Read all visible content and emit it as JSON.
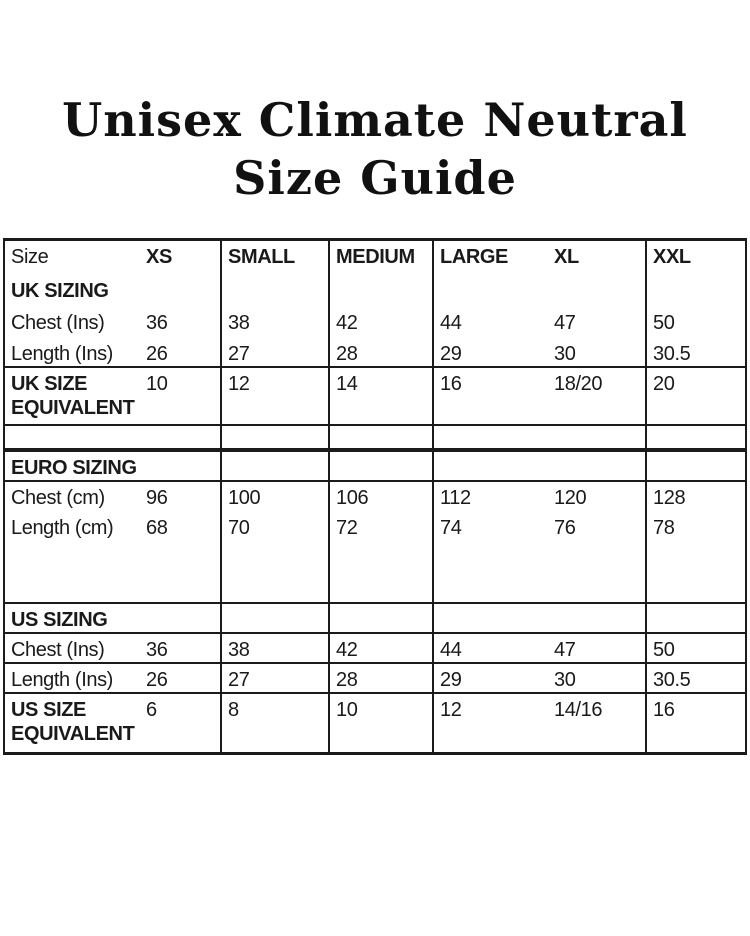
{
  "title": {
    "line1": "Unisex Climate Neutral",
    "line2": "Size Guide"
  },
  "table": {
    "rows": [
      {
        "name": "header",
        "cells": [
          "Size",
          "XS",
          "SMALL",
          "MEDIUM",
          "LARGE",
          "XL",
          "XXL"
        ]
      },
      {
        "name": "uk-sizing-heading",
        "cells": [
          "UK SIZING",
          "",
          "",
          "",
          "",
          "",
          ""
        ]
      },
      {
        "name": "uk-chest",
        "cells": [
          "Chest (Ins)",
          "36",
          "38",
          "42",
          "44",
          "47",
          "50"
        ]
      },
      {
        "name": "uk-length",
        "cells": [
          "Length (Ins)",
          "26",
          "27",
          "28",
          "29",
          "30",
          "30.5"
        ]
      },
      {
        "name": "uk-size-equivalent",
        "cells": [
          "UK SIZE EQUIVALENT",
          "10",
          "12",
          "14",
          "16",
          "18/20",
          "20"
        ]
      },
      {
        "name": "spacer-1",
        "cells": [
          "",
          "",
          "",
          "",
          "",
          "",
          ""
        ]
      },
      {
        "name": "euro-sizing-heading",
        "cells": [
          "EURO SIZING",
          "",
          "",
          "",
          "",
          "",
          ""
        ]
      },
      {
        "name": "euro-chest",
        "cells": [
          "Chest (cm)",
          "96",
          "100",
          "106",
          "112",
          "120",
          "128"
        ]
      },
      {
        "name": "euro-length",
        "cells": [
          "Length (cm)",
          "68",
          "70",
          "72",
          "74",
          "76",
          "78"
        ]
      },
      {
        "name": "spacer-2",
        "cells": [
          "",
          "",
          "",
          "",
          "",
          "",
          ""
        ]
      },
      {
        "name": "us-sizing-heading",
        "cells": [
          "US SIZING",
          "",
          "",
          "",
          "",
          "",
          ""
        ]
      },
      {
        "name": "us-chest",
        "cells": [
          "Chest (Ins)",
          "36",
          "38",
          "42",
          "44",
          "47",
          "50"
        ]
      },
      {
        "name": "us-length",
        "cells": [
          "Length (Ins)",
          "26",
          "27",
          "28",
          "29",
          "30",
          "30.5"
        ]
      },
      {
        "name": "us-size-equivalent",
        "cells": [
          "US SIZE EQUIVALENT",
          "6",
          "8",
          "10",
          "12",
          "14/16",
          "16"
        ]
      }
    ]
  },
  "colors": {
    "text": "#1a1a1a",
    "border": "#1b1b1b",
    "background": "#ffffff"
  }
}
